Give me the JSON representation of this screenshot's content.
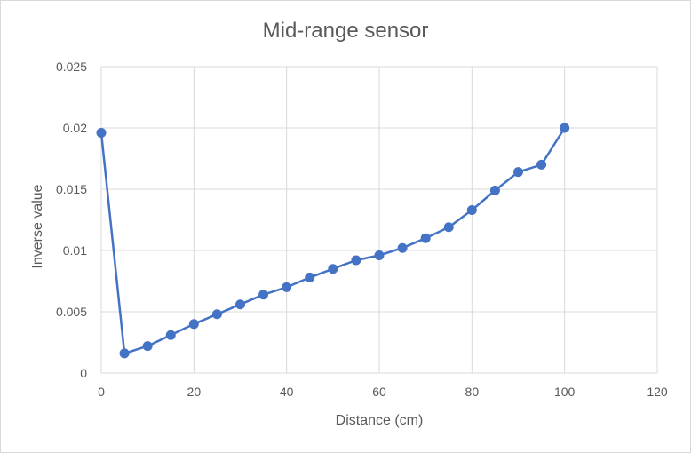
{
  "chart_data": {
    "type": "scatter",
    "title": "Mid-range sensor",
    "xlabel": "Distance (cm)",
    "ylabel": "Inverse value",
    "xlim": [
      0,
      120
    ],
    "ylim": [
      0,
      0.025
    ],
    "x_ticks": [
      "0",
      "20",
      "40",
      "60",
      "80",
      "100",
      "120"
    ],
    "y_ticks": [
      "0",
      "0.005",
      "0.01",
      "0.015",
      "0.02",
      "0.025"
    ],
    "grid": true,
    "legend": "none",
    "series": [
      {
        "color": "#4472c4",
        "marker": "circle",
        "line": true,
        "x": [
          0,
          5,
          10,
          15,
          20,
          25,
          30,
          35,
          40,
          45,
          50,
          55,
          60,
          65,
          70,
          75,
          80,
          85,
          90,
          95,
          100
        ],
        "y": [
          0.0196,
          0.0016,
          0.0022,
          0.0031,
          0.004,
          0.0048,
          0.0056,
          0.0064,
          0.007,
          0.0078,
          0.0085,
          0.0092,
          0.0096,
          0.0102,
          0.011,
          0.0119,
          0.0133,
          0.0149,
          0.0164,
          0.017,
          0.02
        ]
      }
    ]
  }
}
